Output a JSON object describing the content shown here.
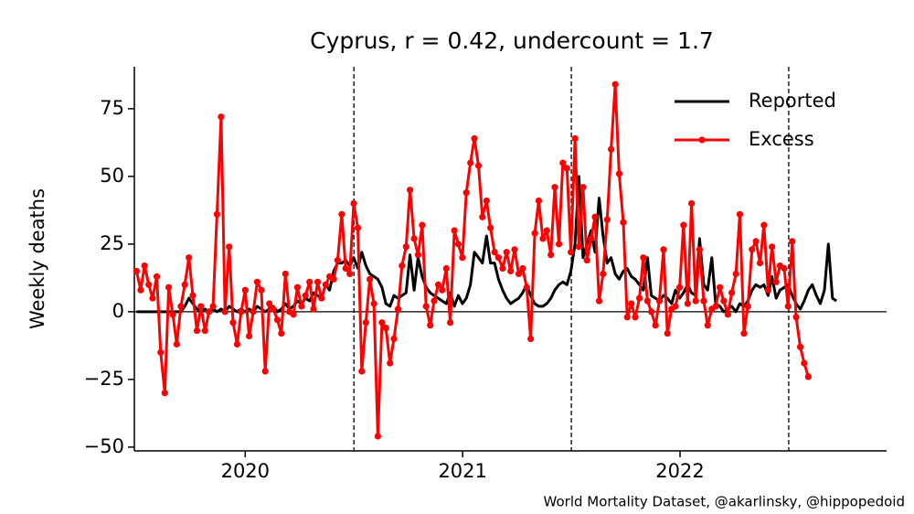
{
  "chart_data": {
    "type": "line",
    "title": "Cyprus, r = 0.42, undercount = 1.7",
    "ylabel": "Weekly deaths",
    "source": "World Mortality Dataset, @akarlinsky, @hippopedoid",
    "legend": "upper right",
    "xlim": [
      2019.99,
      2023.45
    ],
    "xticks": [
      {
        "value": 2020.5,
        "label": "2020"
      },
      {
        "value": 2021.5,
        "label": "2021"
      },
      {
        "value": 2022.5,
        "label": "2022"
      }
    ],
    "ylim": [
      -51.4,
      90.5
    ],
    "yticks": [
      {
        "value": -50,
        "label": "−50"
      },
      {
        "value": -25,
        "label": "−25"
      },
      0,
      25,
      50,
      75
    ],
    "vlines": [
      2021,
      2022,
      2023
    ],
    "hline": 0,
    "x": [
      2020.0,
      2020.019,
      2020.037,
      2020.056,
      2020.074,
      2020.093,
      2020.111,
      2020.13,
      2020.148,
      2020.167,
      2020.185,
      2020.204,
      2020.222,
      2020.241,
      2020.259,
      2020.278,
      2020.296,
      2020.315,
      2020.333,
      2020.352,
      2020.37,
      2020.389,
      2020.407,
      2020.426,
      2020.444,
      2020.463,
      2020.481,
      2020.5,
      2020.518,
      2020.537,
      2020.555,
      2020.574,
      2020.592,
      2020.611,
      2020.629,
      2020.648,
      2020.666,
      2020.685,
      2020.703,
      2020.722,
      2020.74,
      2020.759,
      2020.777,
      2020.796,
      2020.814,
      2020.833,
      2020.851,
      2020.87,
      2020.888,
      2020.907,
      2020.925,
      2020.944,
      2020.962,
      2020.981,
      2020.999,
      2021.018,
      2021.036,
      2021.055,
      2021.073,
      2021.092,
      2021.11,
      2021.129,
      2021.147,
      2021.166,
      2021.184,
      2021.203,
      2021.221,
      2021.24,
      2021.258,
      2021.277,
      2021.295,
      2021.314,
      2021.332,
      2021.351,
      2021.369,
      2021.388,
      2021.406,
      2021.425,
      2021.443,
      2021.462,
      2021.48,
      2021.499,
      2021.517,
      2021.536,
      2021.554,
      2021.573,
      2021.591,
      2021.61,
      2021.628,
      2021.647,
      2021.665,
      2021.684,
      2021.702,
      2021.721,
      2021.739,
      2021.758,
      2021.776,
      2021.795,
      2021.813,
      2021.832,
      2021.85,
      2021.869,
      2021.887,
      2021.906,
      2021.924,
      2021.943,
      2021.961,
      2021.98,
      2021.998,
      2022.017,
      2022.035,
      2022.054,
      2022.072,
      2022.091,
      2022.109,
      2022.128,
      2022.146,
      2022.165,
      2022.183,
      2022.202,
      2022.22,
      2022.239,
      2022.257,
      2022.276,
      2022.294,
      2022.313,
      2022.331,
      2022.35,
      2022.368,
      2022.387,
      2022.405,
      2022.424,
      2022.442,
      2022.461,
      2022.479,
      2022.498,
      2022.516,
      2022.535,
      2022.553,
      2022.572,
      2022.59,
      2022.609,
      2022.627,
      2022.646,
      2022.664,
      2022.683,
      2022.701,
      2022.72,
      2022.738,
      2022.757,
      2022.775,
      2022.794,
      2022.812,
      2022.831,
      2022.849,
      2022.868,
      2022.886,
      2022.905,
      2022.923,
      2022.942,
      2022.96,
      2022.979,
      2022.997,
      2023.016,
      2023.034,
      2023.053,
      2023.071,
      2023.09,
      2023.108,
      2023.127,
      2023.145,
      2023.164,
      2023.182,
      2023.201,
      2023.219
    ],
    "series": [
      {
        "name": "Reported",
        "color": "#000000",
        "values": [
          0,
          0,
          0,
          0,
          0,
          0,
          0,
          0,
          0,
          0,
          0,
          0,
          2,
          5,
          3,
          1,
          0,
          1,
          0,
          1,
          0,
          1,
          0,
          2,
          1,
          0,
          1,
          0,
          1,
          0,
          2,
          1,
          0,
          1,
          2,
          0,
          1,
          3,
          1,
          2,
          4,
          3,
          5,
          4,
          7,
          6,
          5,
          10,
          8,
          15,
          18,
          18,
          19,
          17,
          20,
          16,
          22,
          17,
          14,
          13,
          12,
          9,
          3,
          2,
          6,
          5,
          6,
          7,
          21,
          8,
          20,
          13,
          9,
          7,
          6,
          5,
          4,
          3,
          7,
          2,
          6,
          3,
          5,
          10,
          22,
          20,
          18,
          28,
          18,
          18,
          12,
          8,
          5,
          3,
          4,
          5,
          7,
          10,
          6,
          3,
          2,
          2,
          3,
          5,
          8,
          10,
          11,
          10,
          15,
          25,
          50,
          20,
          25,
          30,
          22,
          42,
          28,
          18,
          20,
          14,
          12,
          15,
          16,
          13,
          12,
          10,
          8,
          20,
          6,
          5,
          4,
          6,
          5,
          3,
          8,
          5,
          7,
          10,
          7,
          6,
          27,
          10,
          8,
          20,
          3,
          2,
          0,
          1,
          2,
          0,
          3,
          2,
          4,
          8,
          10,
          9,
          10,
          6,
          13,
          5,
          8,
          9,
          10,
          6,
          3,
          1,
          4,
          8,
          10,
          6,
          3,
          8,
          25,
          5,
          4
        ]
      },
      {
        "name": "Excess",
        "color": "#ff0000",
        "marker": "o",
        "values": [
          15,
          8,
          17,
          10,
          5,
          13,
          -15,
          -30,
          9,
          -1,
          -12,
          2,
          10,
          20,
          6,
          -7,
          2,
          -7,
          0,
          2,
          36,
          72,
          0,
          24,
          -4,
          -12,
          0,
          8,
          -9,
          0,
          11,
          8,
          -22,
          3,
          1,
          -3,
          -8,
          14,
          0,
          -1,
          9,
          2,
          6,
          11,
          1,
          11,
          5,
          10,
          13,
          12,
          19,
          36,
          16,
          14,
          40,
          31,
          -22,
          -4,
          12,
          3,
          -46,
          -4,
          -6,
          -19,
          -10,
          1,
          17,
          24,
          45,
          27,
          21,
          32,
          2,
          -5,
          4,
          10,
          8,
          16,
          -4,
          30,
          25,
          20,
          44,
          55,
          64,
          54,
          35,
          41,
          31,
          22,
          20,
          16,
          22,
          15,
          23,
          14,
          16,
          9,
          -10,
          29,
          41,
          27,
          30,
          21,
          46,
          25,
          55,
          53,
          22,
          64,
          24,
          46,
          19,
          27,
          35,
          4,
          14,
          34,
          60,
          84,
          51,
          33,
          -2,
          3,
          -2,
          5,
          20,
          4,
          0,
          -5,
          4,
          23,
          -8,
          1,
          2,
          9,
          32,
          3,
          40,
          4,
          23,
          4,
          -5,
          1,
          2,
          9,
          4,
          -1,
          7,
          14,
          36,
          -8,
          2,
          23,
          26,
          18,
          32,
          8,
          24,
          11,
          17,
          16,
          2,
          26,
          -2,
          -13,
          -19,
          -24,
          null,
          null,
          null,
          null,
          null,
          null,
          null
        ]
      }
    ]
  }
}
